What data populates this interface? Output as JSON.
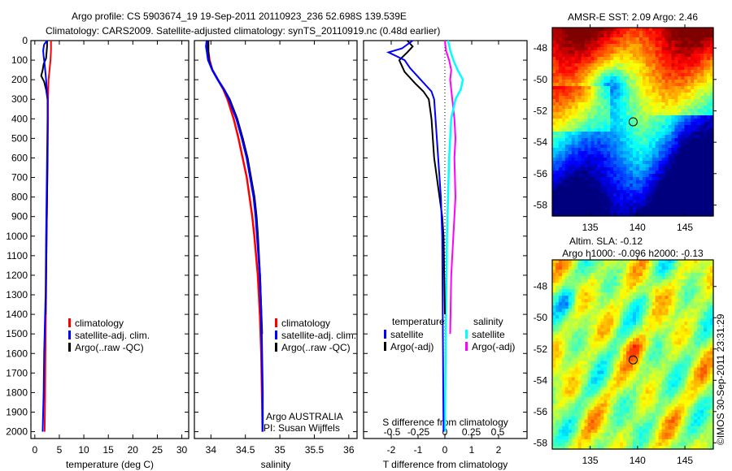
{
  "header": {
    "line1": "Argo profile: CS 5903674_19 19-Sep-2011 20110923_236 52.698S 139.539E",
    "line2": "Climatology: CARS2009. Satellite-adjusted climatology: synTS_20110919.nc (0.48d earlier)"
  },
  "credit": {
    "pi_line1": "Argo AUSTRALIA",
    "pi_line2": "PI: Susan Wijffels",
    "stamp": "©IMOS 30-Sep-2011 23:31:29"
  },
  "colors": {
    "climatology": "#ff0000",
    "satellite": "#0000ff",
    "argo": "#000000",
    "sal_satellite": "#00ffff",
    "sal_argo": "#ff00ff"
  },
  "chart_data": [
    {
      "type": "line",
      "name": "temperature",
      "xlabel": "temperature (deg C)",
      "xticks": [
        "0",
        "5",
        "10",
        "15",
        "20",
        "25",
        "30"
      ],
      "xlim": [
        -0.8,
        31.4
      ],
      "ylim": [
        2035,
        0
      ],
      "yticks": [
        "0",
        "100",
        "200",
        "300",
        "400",
        "500",
        "600",
        "700",
        "800",
        "900",
        "1000",
        "1100",
        "1200",
        "1300",
        "1400",
        "1500",
        "1600",
        "1700",
        "1800",
        "1900",
        "2000"
      ],
      "legend": [
        "climatology",
        "satellite-adj. clim.",
        "Argo(..raw -QC)"
      ],
      "series": [
        {
          "name": "climatology",
          "depth": [
            0,
            50,
            100,
            150,
            200,
            300,
            400,
            600,
            800,
            1000,
            1300,
            1500,
            1800,
            2000
          ],
          "values": [
            3.3,
            3.3,
            3.2,
            3.0,
            2.8,
            2.7,
            2.7,
            2.6,
            2.5,
            2.4,
            2.3,
            2.2,
            2.1,
            2.0
          ]
        },
        {
          "name": "satellite-adj. clim.",
          "depth": [
            0,
            20,
            50,
            80,
            120,
            200,
            300,
            400,
            600,
            800,
            1000,
            1300,
            1600,
            1800,
            2000
          ],
          "values": [
            2.5,
            1.9,
            1.7,
            1.8,
            2.0,
            2.3,
            2.6,
            2.6,
            2.5,
            2.4,
            2.3,
            2.2,
            1.9,
            1.8,
            1.6
          ]
        },
        {
          "name": "Argo(..raw -QC)",
          "depth": [
            0,
            30,
            60,
            90,
            120,
            150,
            180,
            210,
            250,
            300,
            400,
            600,
            800,
            1000,
            1200,
            1400
          ],
          "values": [
            2.5,
            2.5,
            2.4,
            2.3,
            1.8,
            1.6,
            1.3,
            1.9,
            2.3,
            2.6,
            2.6,
            2.6,
            2.5,
            2.4,
            2.3,
            2.2
          ]
        }
      ]
    },
    {
      "type": "line",
      "name": "salinity",
      "xlabel": "salinity",
      "xticks": [
        "34",
        "34.5",
        "35",
        "35.5",
        "36"
      ],
      "xlim": [
        33.76,
        36.12
      ],
      "ylim": [
        2035,
        0
      ],
      "legend": [
        "climatology",
        "satellite-adj. clim.",
        "Argo(..raw -QC)"
      ],
      "series": [
        {
          "name": "climatology",
          "depth": [
            0,
            50,
            100,
            150,
            200,
            250,
            300,
            400,
            500,
            600,
            700,
            800,
            900,
            1000,
            1200,
            1400,
            1600,
            1800,
            2000
          ],
          "values": [
            33.96,
            33.96,
            33.98,
            34.02,
            34.1,
            34.18,
            34.24,
            34.33,
            34.4,
            34.46,
            34.52,
            34.56,
            34.6,
            34.63,
            34.68,
            34.71,
            34.73,
            34.74,
            34.75
          ]
        },
        {
          "name": "satellite-adj. clim.",
          "depth": [
            0,
            30,
            50,
            100,
            150,
            200,
            250,
            300,
            400,
            500,
            600,
            700,
            800,
            900,
            1000,
            1200,
            1400,
            1600,
            1800,
            2000
          ],
          "values": [
            33.94,
            33.93,
            33.94,
            33.96,
            34.02,
            34.1,
            34.19,
            34.26,
            34.37,
            34.45,
            34.52,
            34.57,
            34.62,
            34.65,
            34.67,
            34.71,
            34.73,
            34.74,
            34.75,
            34.75
          ]
        },
        {
          "name": "Argo(..raw -QC)",
          "depth": [
            0,
            50,
            100,
            150,
            200,
            250,
            300,
            400,
            500,
            600,
            700,
            800,
            900,
            1000,
            1200,
            1400,
            1500
          ],
          "values": [
            33.96,
            33.96,
            33.97,
            34.02,
            34.1,
            34.19,
            34.27,
            34.38,
            34.46,
            34.53,
            34.58,
            34.63,
            34.66,
            34.68,
            34.71,
            34.73,
            34.74
          ]
        }
      ]
    },
    {
      "type": "line",
      "name": "difference",
      "xlabel": "T difference from climatology",
      "xticks": [
        "-2",
        "-1",
        "0",
        "1",
        "2"
      ],
      "xlim": [
        -3.05,
        3.05
      ],
      "x2label": "S difference from climatology",
      "x2ticks": [
        "-0.5",
        "-0.25",
        "0",
        "0.25",
        "0.5"
      ],
      "ylim": [
        2035,
        0
      ],
      "legend_titles": [
        "temperature",
        "salinity"
      ],
      "legend": [
        "satellite",
        "Argo(-adj)",
        "satellite",
        "Argo(-adj)"
      ],
      "series": [
        {
          "name": "T satellite",
          "axis": "T",
          "depth": [
            0,
            40,
            60,
            80,
            100,
            140,
            200,
            260,
            300,
            400,
            500,
            600,
            800,
            1000,
            1400,
            2000
          ],
          "values": [
            -1.2,
            -1.6,
            -2.1,
            -1.8,
            -1.5,
            -1.3,
            -0.9,
            -0.5,
            -0.4,
            -0.35,
            -0.3,
            -0.25,
            -0.15,
            -0.1,
            -0.08,
            -0.05
          ]
        },
        {
          "name": "T Argo(-adj)",
          "axis": "T",
          "depth": [
            0,
            30,
            60,
            100,
            130,
            160,
            190,
            220,
            260,
            300,
            400,
            500,
            600,
            700,
            800,
            900,
            1000,
            1400
          ],
          "values": [
            -1.4,
            -1.2,
            -1.4,
            -1.7,
            -1.6,
            -1.5,
            -1.3,
            -1.1,
            -0.8,
            -0.6,
            -0.5,
            -0.45,
            -0.4,
            -0.3,
            -0.2,
            -0.1,
            -0.05,
            0
          ]
        },
        {
          "name": "S satellite",
          "axis": "S",
          "depth": [
            0,
            50,
            100,
            150,
            200,
            250,
            300,
            400,
            600,
            800,
            1000,
            1400,
            2000
          ],
          "values": [
            0.03,
            0.05,
            0.08,
            0.12,
            0.17,
            0.15,
            0.1,
            0.06,
            0.04,
            0.03,
            0.02,
            0.01,
            0.0
          ]
        },
        {
          "name": "S Argo(-adj)",
          "axis": "S",
          "depth": [
            0,
            50,
            100,
            150,
            200,
            300,
            400,
            500,
            600,
            800,
            1000,
            1200,
            1500
          ],
          "values": [
            0.0,
            0.01,
            0.04,
            0.06,
            0.05,
            0.07,
            0.09,
            0.1,
            0.09,
            0.1,
            0.08,
            0.06,
            0.05
          ]
        }
      ]
    },
    {
      "type": "heatmap",
      "name": "sst-map",
      "title": "AMSR-E SST: 2.09 Argo: 2.46",
      "xticks": [
        "135",
        "140",
        "145"
      ],
      "yticks": [
        "-48",
        "-50",
        "-52",
        "-54",
        "-56",
        "-58"
      ],
      "xlim": [
        131,
        148
      ],
      "ylim": [
        -58.7,
        -46.7
      ],
      "marker": {
        "lon": 139.539,
        "lat": -52.698
      }
    },
    {
      "type": "heatmap",
      "name": "sla-map",
      "title_line1": "Altim. SLA: -0.12",
      "title_line2": "Argo h1000: -0.096 h2000: -0.13",
      "xticks": [
        "135",
        "140",
        "145"
      ],
      "yticks": [
        "-48",
        "-50",
        "-52",
        "-54",
        "-56",
        "-58"
      ],
      "xlim": [
        131,
        148
      ],
      "ylim": [
        -58.4,
        -46.3
      ],
      "marker": {
        "lon": 139.539,
        "lat": -52.698
      }
    }
  ]
}
